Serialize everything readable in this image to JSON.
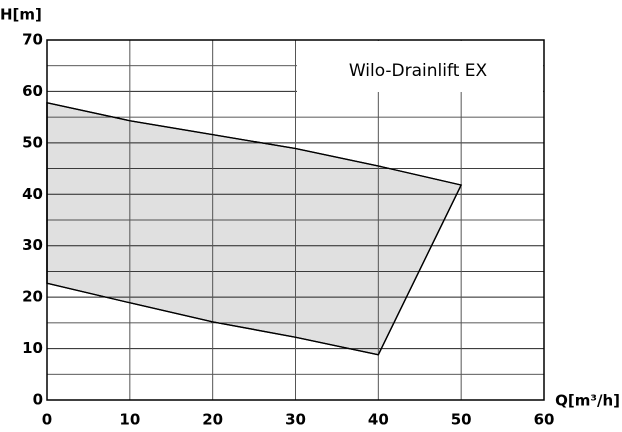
{
  "chart_data": {
    "type": "area",
    "annotation": "Wilo-Drainlift EX",
    "x_label": "Q[m³/h]",
    "y_label": "H[m]",
    "x": [
      0,
      10,
      20,
      30,
      40,
      50,
      40,
      30,
      20,
      10,
      0
    ],
    "values": [
      57.8,
      54.3,
      51.6,
      48.9,
      45.5,
      41.8,
      8.8,
      12.2,
      15.2,
      18.9,
      22.7
    ],
    "color": "#e0e0e0",
    "xlim": [
      0,
      60
    ],
    "xticks": [
      0,
      10,
      20,
      30,
      40,
      50,
      60
    ],
    "ylim": [
      0,
      70
    ],
    "yticks": [
      0,
      10,
      20,
      30,
      40,
      50,
      60,
      70
    ],
    "grid": true
  }
}
